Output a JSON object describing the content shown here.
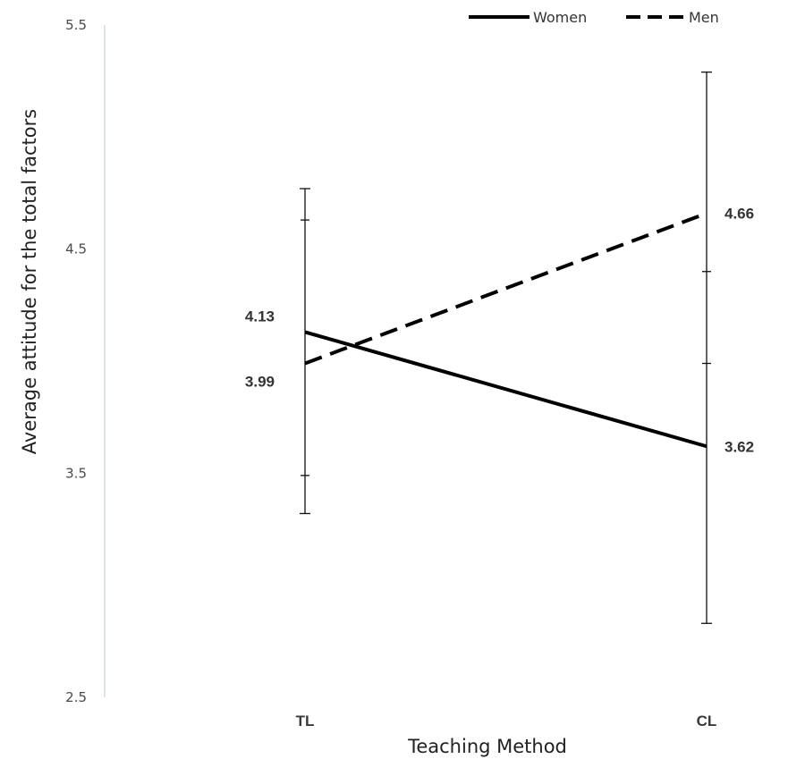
{
  "chart_data": {
    "type": "line",
    "title": "",
    "xlabel": "Teaching Method",
    "ylabel": "Average attitude for the total factors",
    "categories": [
      "TL",
      "CL"
    ],
    "ylim": [
      2.5,
      5.5
    ],
    "yticks": [
      "2.5",
      "3.5",
      "4.5",
      "5.5"
    ],
    "grid": false,
    "legend_position": "top-right",
    "series": [
      {
        "name": "Women",
        "style": "solid",
        "color": "#000000",
        "values": [
          4.13,
          3.62
        ],
        "value_labels": [
          "4.13",
          "3.62"
        ]
      },
      {
        "name": "Men",
        "style": "dashed",
        "color": "#000000",
        "values": [
          3.99,
          4.66
        ],
        "value_labels": [
          "3.99",
          "4.66"
        ]
      }
    ],
    "error_bars": [
      {
        "category": "TL",
        "low": 3.32,
        "high": 4.77,
        "minor_ticks": [
          3.49,
          4.63
        ]
      },
      {
        "category": "CL",
        "low": 2.83,
        "high": 5.29,
        "minor_ticks": [
          4.4,
          3.99
        ]
      }
    ]
  }
}
